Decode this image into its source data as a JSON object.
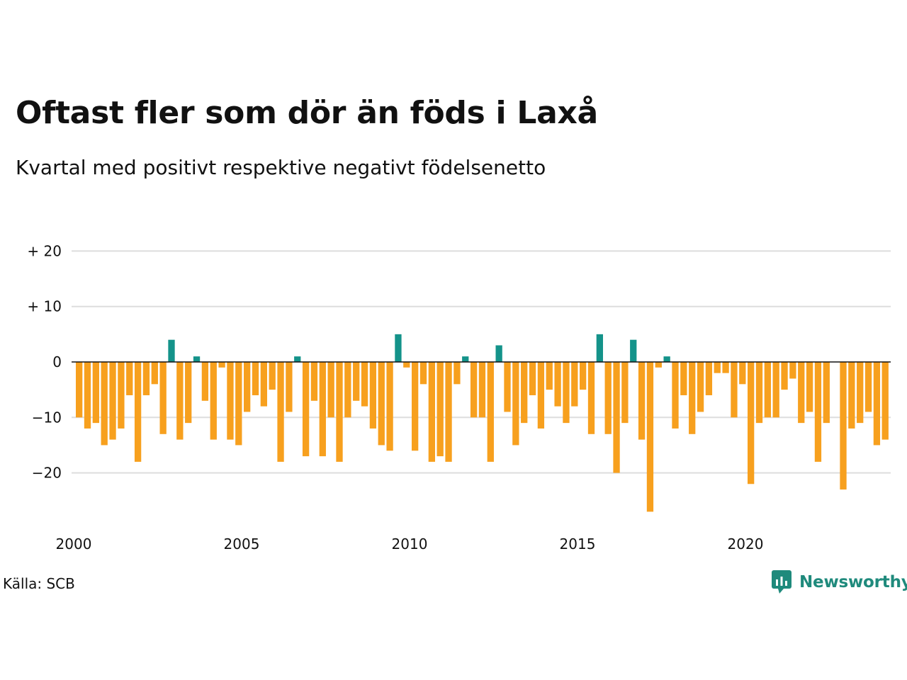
{
  "title": "Oftast fler som dör än föds i Laxå",
  "subtitle": "Kvartal med positivt respektive negativt födelsenetto",
  "source": "Källa: SCB",
  "brand": "Newsworthy",
  "colors": {
    "positive": "#14938a",
    "negative": "#f7a01e",
    "grid": "#dddddd",
    "zero_line": "#111111",
    "brand": "#1f8a7c"
  },
  "chart_data": {
    "type": "bar",
    "x_start": 2000.0,
    "x_step": 0.25,
    "xticks": [
      2000,
      2005,
      2010,
      2015,
      2020
    ],
    "xtick_labels": [
      "2000",
      "2005",
      "2010",
      "2015",
      "2020"
    ],
    "yticks": [
      20,
      10,
      0,
      -10,
      -20
    ],
    "ytick_labels": [
      "+ 20",
      "+ 10",
      "0",
      "−10",
      "−20"
    ],
    "ylim": [
      -29,
      22
    ],
    "xlim": [
      2000,
      2024.75
    ],
    "grid": true,
    "values": [
      -10,
      -12,
      -11,
      -15,
      -14,
      -12,
      -6,
      -18,
      -6,
      -4,
      -13,
      4,
      -14,
      -11,
      1,
      -7,
      -14,
      -1,
      -14,
      -15,
      -9,
      -6,
      -8,
      -5,
      -18,
      -9,
      1,
      -17,
      -7,
      -17,
      -10,
      -18,
      -10,
      -7,
      -8,
      -12,
      -15,
      -16,
      5,
      -1,
      -16,
      -4,
      -18,
      -17,
      -18,
      -4,
      1,
      -10,
      -10,
      -18,
      3,
      -9,
      -15,
      -11,
      -6,
      -12,
      -5,
      -8,
      -11,
      -8,
      -5,
      -13,
      5,
      -13,
      -20,
      -11,
      4,
      -14,
      -27,
      -1,
      1,
      -12,
      -6,
      -13,
      -9,
      -6,
      -2,
      -2,
      -10,
      -4,
      -22,
      -11,
      -10,
      -10,
      -5,
      -3,
      -11,
      -9,
      -18,
      -11,
      0,
      -23,
      -12,
      -11,
      -9,
      -15,
      -14
    ]
  }
}
